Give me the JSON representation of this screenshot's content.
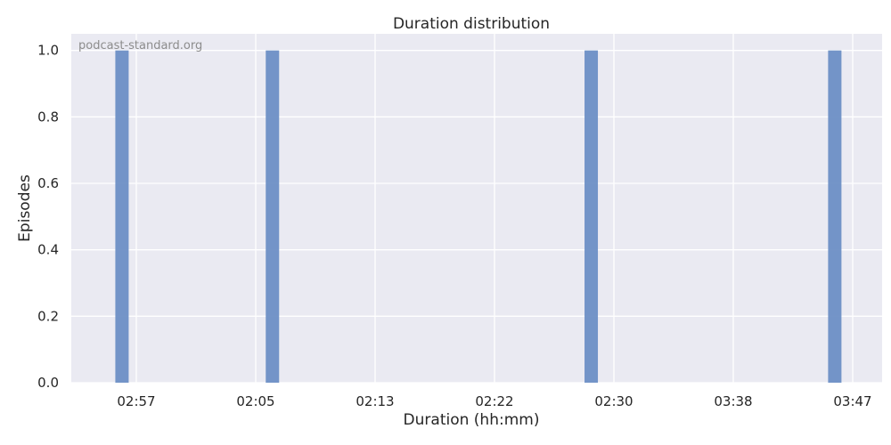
{
  "chart_data": {
    "type": "bar",
    "title": "Duration distribution",
    "xlabel": "Duration (hh:mm)",
    "ylabel": "Episodes",
    "watermark": "podcast-standard.org",
    "x_tick_labels": [
      "02:57",
      "02:05",
      "02:13",
      "02:22",
      "02:30",
      "03:38",
      "03:47"
    ],
    "y_ticks": [
      0.0,
      0.2,
      0.4,
      0.6,
      0.8,
      1.0
    ],
    "y_tick_labels": [
      "0.0",
      "0.2",
      "0.4",
      "0.6",
      "0.8",
      "1.0"
    ],
    "ylim": [
      0,
      1.05
    ],
    "series": [
      {
        "bars": [
          {
            "between_ticks": [
              -1,
              0
            ],
            "fraction": 0.88,
            "value": 1
          },
          {
            "between_ticks": [
              1,
              2
            ],
            "fraction": 0.14,
            "value": 1
          },
          {
            "between_ticks": [
              3,
              4
            ],
            "fraction": 0.81,
            "value": 1
          },
          {
            "between_ticks": [
              5,
              6
            ],
            "fraction": 0.85,
            "value": 1
          }
        ]
      }
    ],
    "grid": true,
    "colors": {
      "plot_background": "#eaeaf2",
      "grid": "#ffffff",
      "bar": "#6d8fc5"
    }
  }
}
